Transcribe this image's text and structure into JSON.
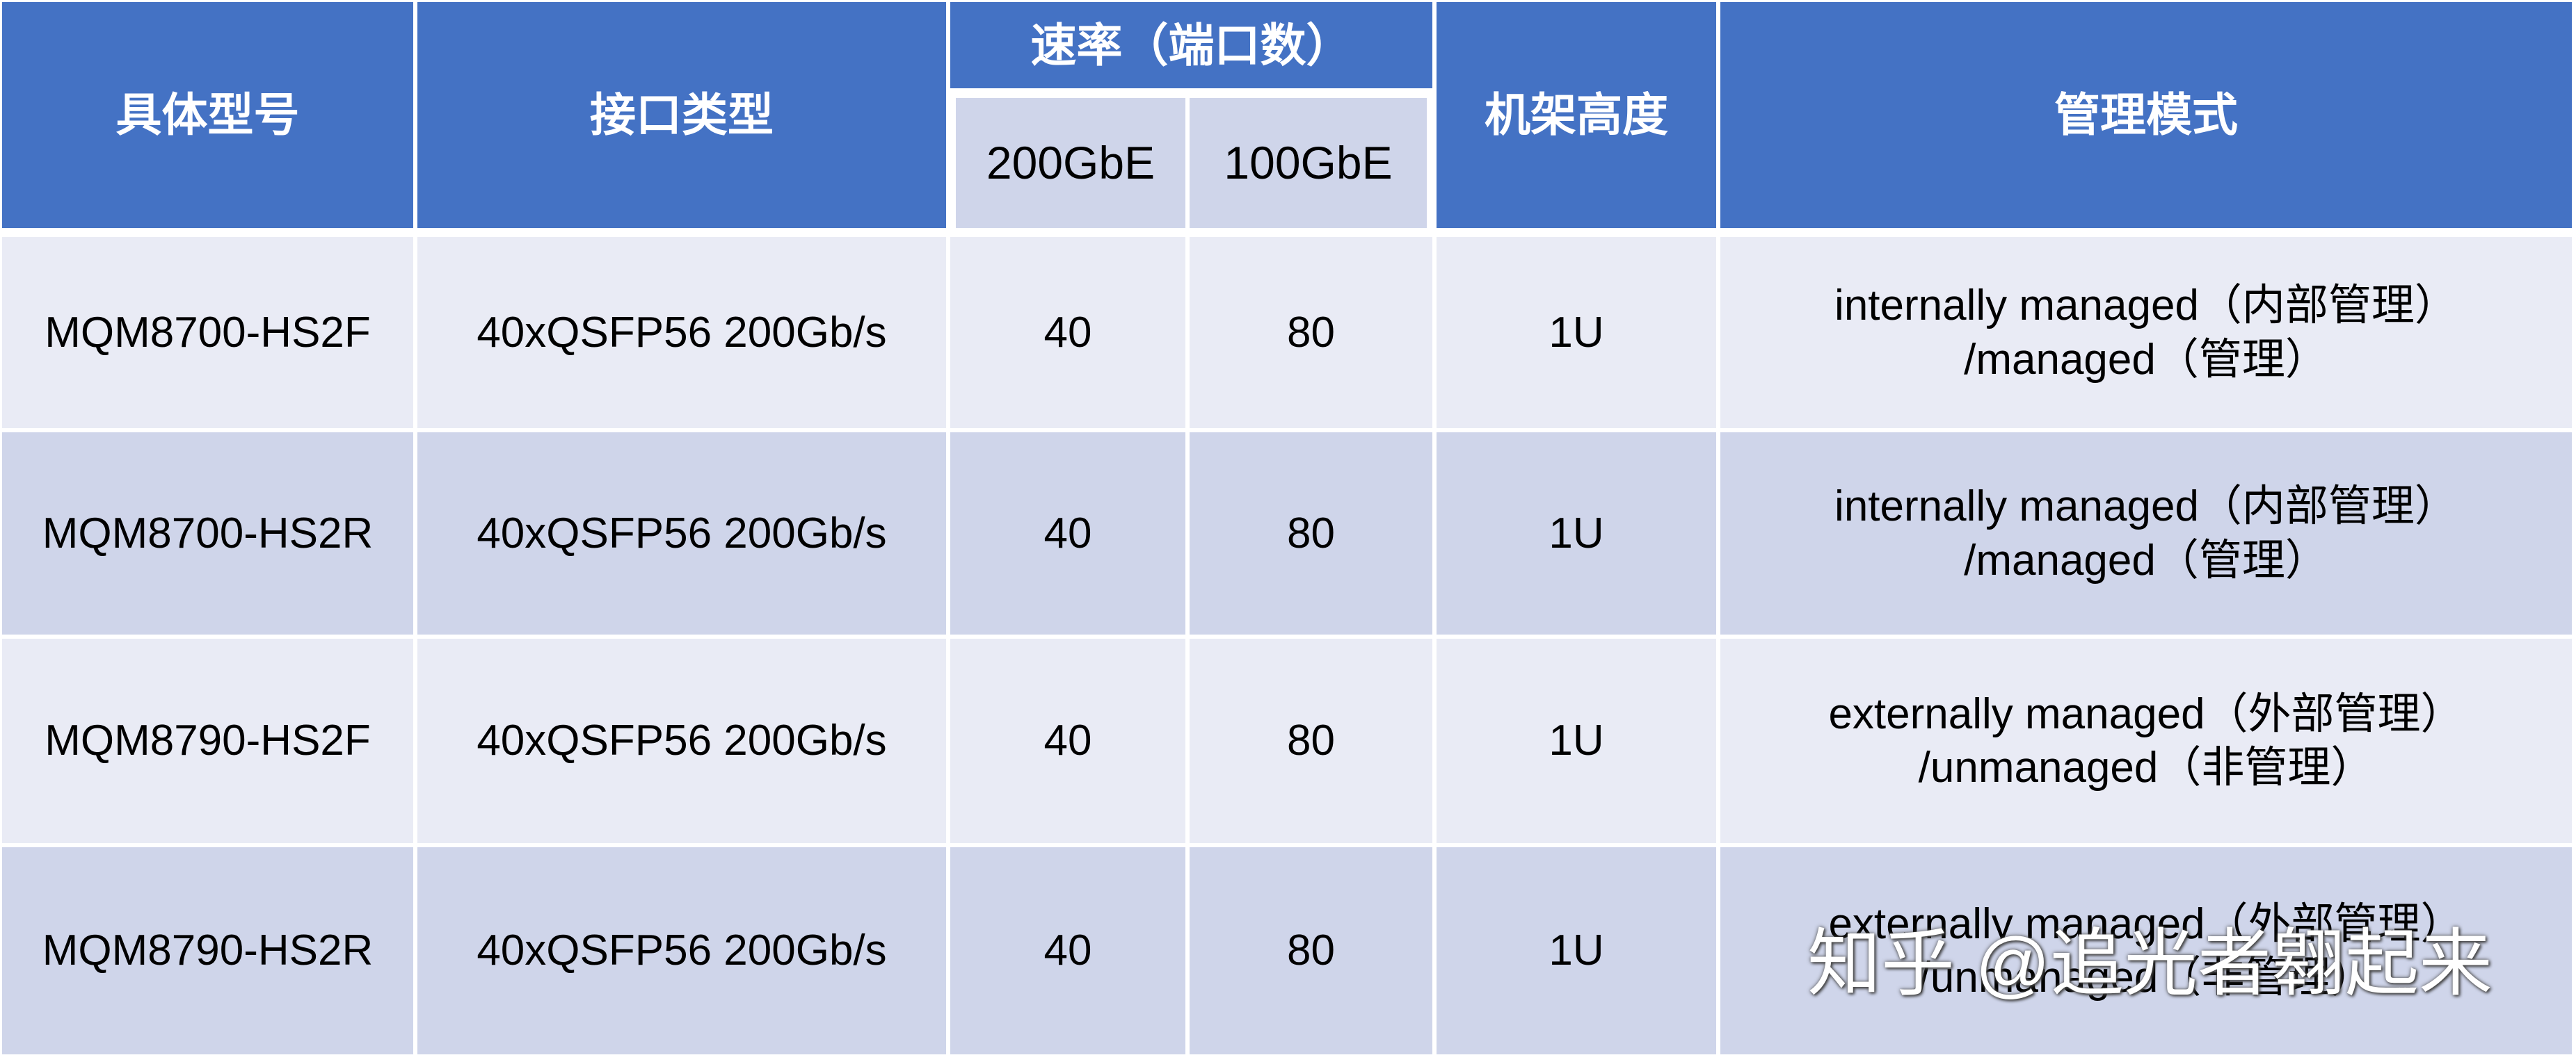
{
  "table": {
    "header": {
      "model": "具体型号",
      "interface": "接口类型",
      "rate": "速率（端口数）",
      "rate_sub": [
        "200GbE",
        "100GbE"
      ],
      "height": "机架高度",
      "management": "管理模式"
    },
    "rows": [
      [
        "MQM8700-HS2F",
        "40xQSFP56 200Gb/s",
        "40",
        "80",
        "1U",
        [
          "internally managed（内部管理）",
          "/managed（管理）"
        ]
      ],
      [
        "MQM8700-HS2R",
        "40xQSFP56 200Gb/s",
        "40",
        "80",
        "1U",
        [
          "internally managed（内部管理）",
          "/managed（管理）"
        ]
      ],
      [
        "MQM8790-HS2F",
        "40xQSFP56 200Gb/s",
        "40",
        "80",
        "1U",
        [
          "externally managed（外部管理）",
          "/unmanaged（非管理）"
        ]
      ],
      [
        "MQM8790-HS2R",
        "40xQSFP56 200Gb/s",
        "40",
        "80",
        "1U",
        [
          "externally managed（外部管理）",
          "/unmanaged（非管理）"
        ]
      ]
    ]
  },
  "watermark": "知乎 @追光者翱起来"
}
